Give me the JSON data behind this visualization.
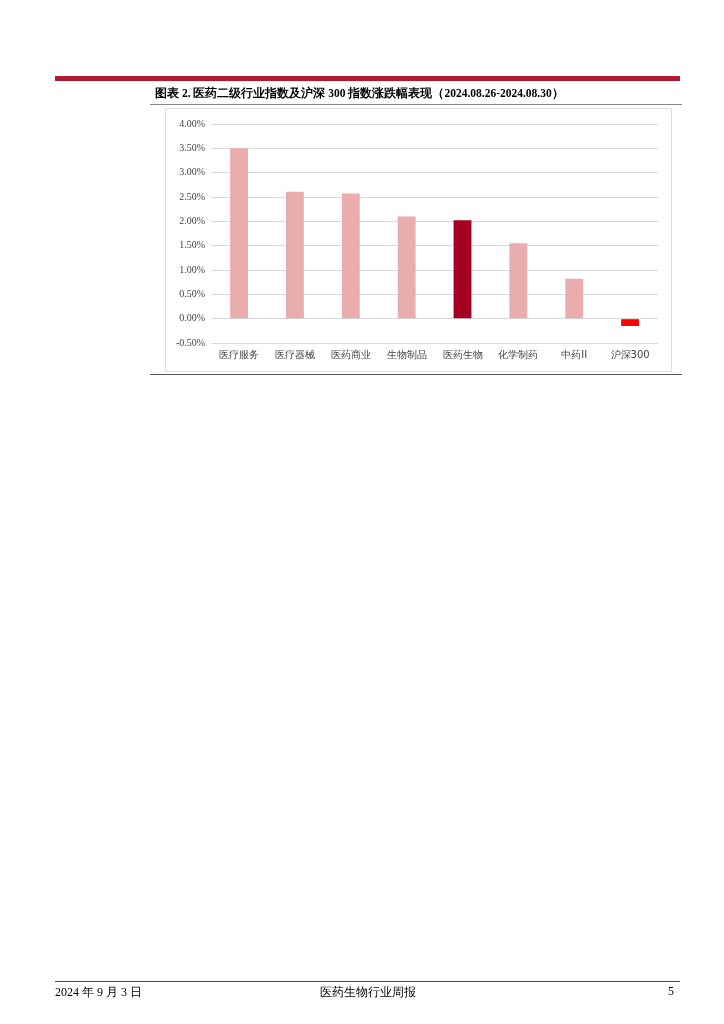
{
  "chart_data": {
    "type": "bar",
    "title": "图表 2. 医药二级行业指数及沪深 300 指数涨跌幅表现（2024.08.26-2024.08.30）",
    "categories": [
      "医疗服务",
      "医疗器械",
      "医药商业",
      "生物制品",
      "医药生物",
      "化学制药",
      "中药II",
      "沪深300"
    ],
    "values": [
      3.5,
      2.61,
      2.57,
      2.1,
      2.02,
      1.55,
      0.82,
      -0.15
    ],
    "colors": [
      "#e8adac",
      "#e8adac",
      "#e8adac",
      "#e8adac",
      "#a50021",
      "#e8adac",
      "#e8adac",
      "#ff0000"
    ],
    "ylim": [
      -0.5,
      4
    ],
    "yticks": [
      {
        "value": -0.5,
        "label": "-0.50%"
      },
      {
        "value": 0,
        "label": "0.00%"
      },
      {
        "value": 0.5,
        "label": "0.50%"
      },
      {
        "value": 1,
        "label": "1.00%"
      },
      {
        "value": 1.5,
        "label": "1.50%"
      },
      {
        "value": 2,
        "label": "2.00%"
      },
      {
        "value": 2.5,
        "label": "2.50%"
      },
      {
        "value": 3,
        "label": "3.00%"
      },
      {
        "value": 3.5,
        "label": "3.50%"
      },
      {
        "value": 4,
        "label": "4.00%"
      }
    ],
    "grid": "y",
    "annotations": [
      "2024 年 9 月 3 日",
      "医药生物行业周报",
      "5"
    ]
  }
}
